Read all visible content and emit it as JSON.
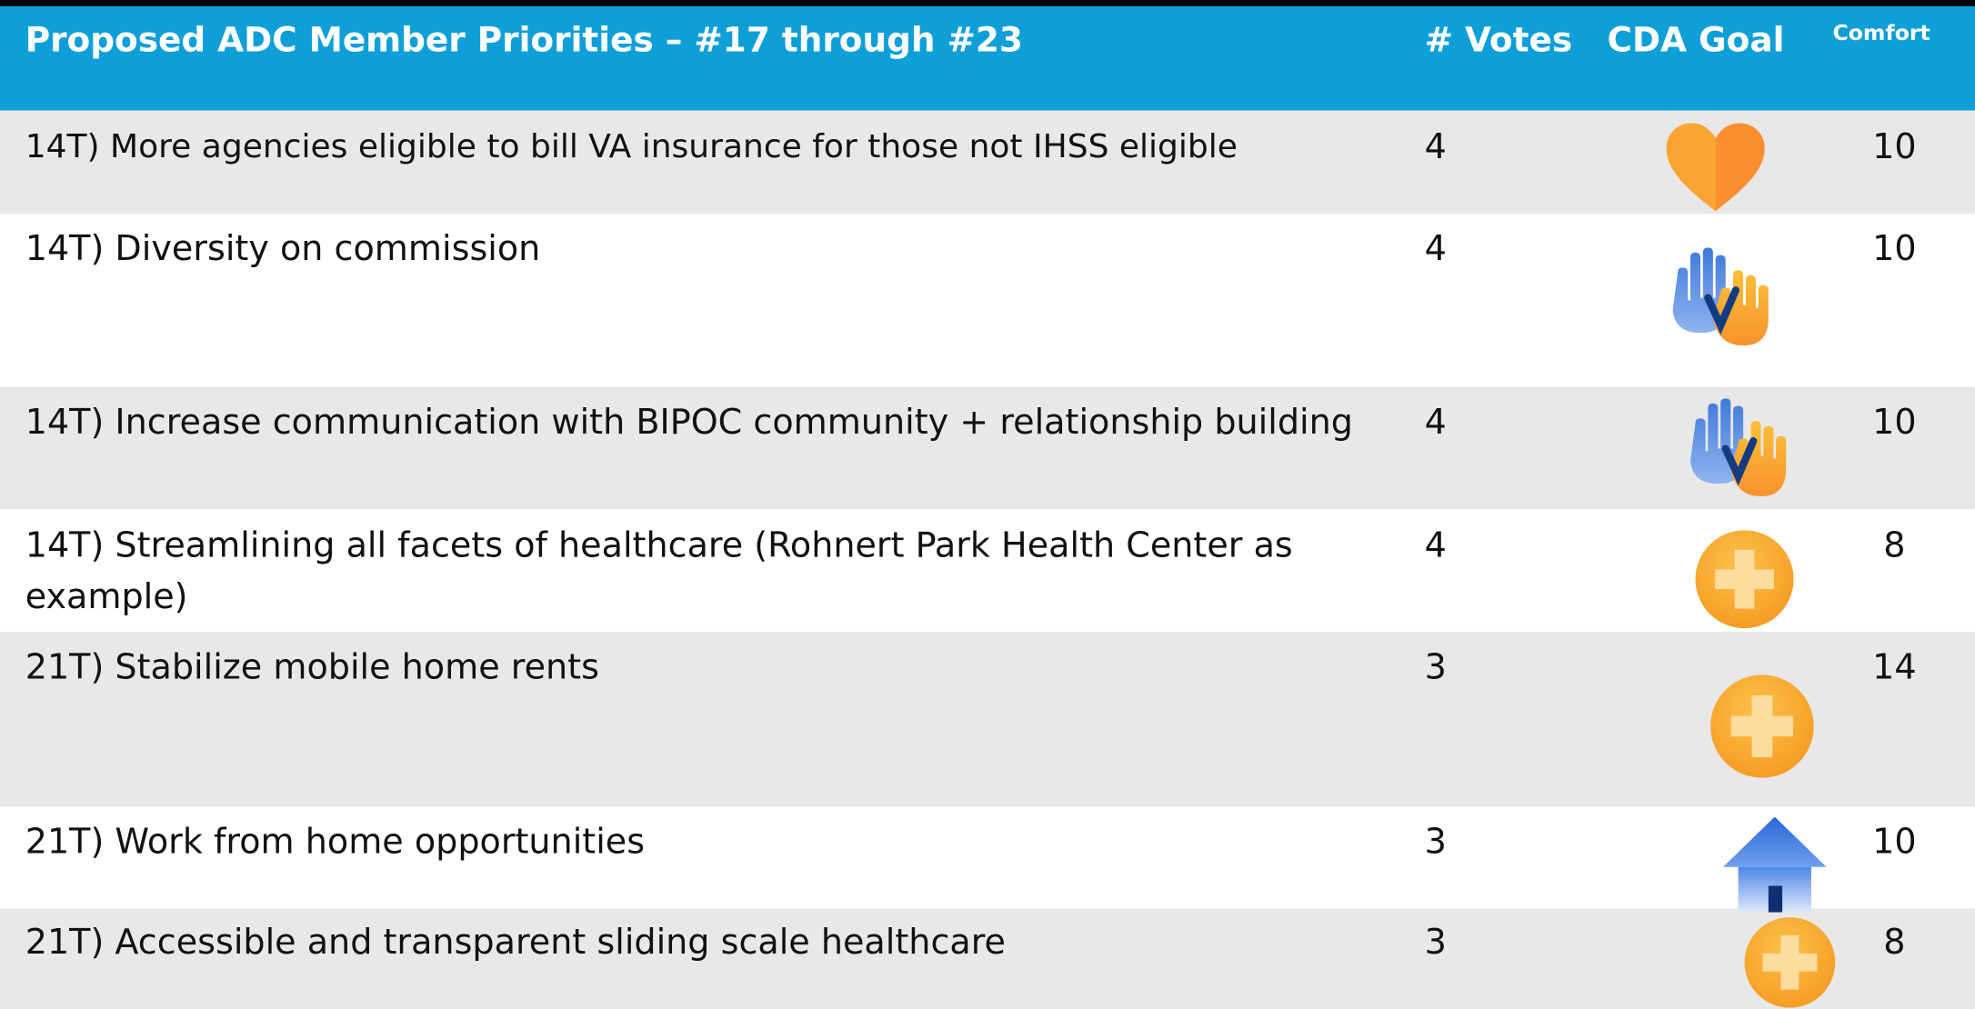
{
  "header": {
    "title": "Proposed ADC Member Priorities – #17 through #23",
    "columns": [
      "# Votes",
      "CDA Goal",
      "Comfort"
    ]
  },
  "table": {
    "rows": [
      [
        "14T) More agencies eligible to bill VA insurance for those not IHSS eligible",
        4,
        10
      ],
      [
        "14T) Diversity on commission",
        4,
        10
      ],
      [
        "14T) Increase communication with BIPOC community + relationship building",
        4,
        10
      ],
      [
        "14T) Streamlining all facets of healthcare (Rohnert Park Health Center as example)",
        4,
        8
      ],
      [
        "21T) Stabilize mobile home rents",
        3,
        14
      ],
      [
        "21T) Work from home opportunities",
        3,
        10
      ],
      [
        "21T) Accessible and transparent sliding scale healthcare",
        3,
        8
      ]
    ]
  }
}
